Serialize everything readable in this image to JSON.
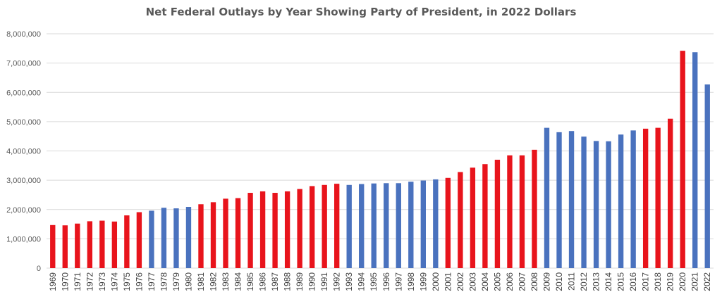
{
  "colors": {
    "republican": "#e8141c",
    "democrat": "#4a72be",
    "gridline": "#d9d9d9",
    "tick_text": "#595959"
  },
  "chart_data": {
    "type": "bar",
    "title": "Net Federal Outlays by Year Showing Party of President, in 2022 Dollars",
    "xlabel": "",
    "ylabel": "",
    "ylim": [
      0,
      8000000
    ],
    "yticks": [
      0,
      1000000,
      2000000,
      3000000,
      4000000,
      5000000,
      6000000,
      7000000,
      8000000
    ],
    "ytick_labels": [
      "0",
      "1,000,000",
      "2,000,000",
      "3,000,000",
      "4,000,000",
      "5,000,000",
      "6,000,000",
      "7,000,000",
      "8,000,000"
    ],
    "grid": true,
    "legend": "none",
    "categories": [
      "1969",
      "1970",
      "1971",
      "1972",
      "1973",
      "1974",
      "1975",
      "1976",
      "1977",
      "1978",
      "1979",
      "1980",
      "1981",
      "1982",
      "1983",
      "1984",
      "1985",
      "1986",
      "1987",
      "1988",
      "1989",
      "1990",
      "1991",
      "1992",
      "1993",
      "1994",
      "1995",
      "1996",
      "1997",
      "1998",
      "1999",
      "2000",
      "2001",
      "2002",
      "2003",
      "2004",
      "2005",
      "2006",
      "2007",
      "2008",
      "2009",
      "2010",
      "2011",
      "2012",
      "2013",
      "2014",
      "2015",
      "2016",
      "2017",
      "2018",
      "2019",
      "2020",
      "2021",
      "2022"
    ],
    "values": [
      1470000,
      1460000,
      1520000,
      1600000,
      1620000,
      1590000,
      1800000,
      1910000,
      1960000,
      2060000,
      2040000,
      2090000,
      2180000,
      2250000,
      2370000,
      2390000,
      2570000,
      2620000,
      2570000,
      2620000,
      2700000,
      2800000,
      2840000,
      2880000,
      2840000,
      2870000,
      2890000,
      2900000,
      2900000,
      2950000,
      2990000,
      3030000,
      3080000,
      3280000,
      3430000,
      3550000,
      3700000,
      3850000,
      3850000,
      4040000,
      4790000,
      4640000,
      4680000,
      4490000,
      4340000,
      4330000,
      4560000,
      4700000,
      4760000,
      4790000,
      5100000,
      7420000,
      7370000,
      6270000
    ],
    "party": [
      "R",
      "R",
      "R",
      "R",
      "R",
      "R",
      "R",
      "R",
      "D",
      "D",
      "D",
      "D",
      "R",
      "R",
      "R",
      "R",
      "R",
      "R",
      "R",
      "R",
      "R",
      "R",
      "R",
      "R",
      "D",
      "D",
      "D",
      "D",
      "D",
      "D",
      "D",
      "D",
      "R",
      "R",
      "R",
      "R",
      "R",
      "R",
      "R",
      "R",
      "D",
      "D",
      "D",
      "D",
      "D",
      "D",
      "D",
      "D",
      "R",
      "R",
      "R",
      "R",
      "D",
      "D"
    ]
  }
}
